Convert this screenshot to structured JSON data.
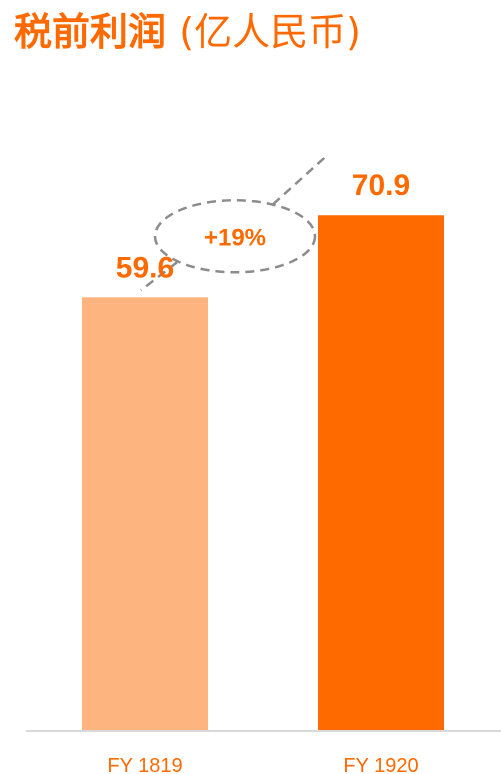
{
  "chart_data": {
    "type": "bar",
    "title": "税前利润",
    "unit": "(亿人民币)",
    "categories": [
      "FY 1819",
      "FY 1920"
    ],
    "values": [
      59.6,
      70.9
    ],
    "value_labels": [
      "59.6",
      "70.9"
    ],
    "bar_colors": [
      "#fdb47f",
      "#ff6a00"
    ],
    "label_color": "#ff6a00",
    "ylim": [
      0,
      73
    ],
    "grid": false,
    "annotation": {
      "text": "+19%",
      "style": "dashed-ellipse"
    }
  }
}
